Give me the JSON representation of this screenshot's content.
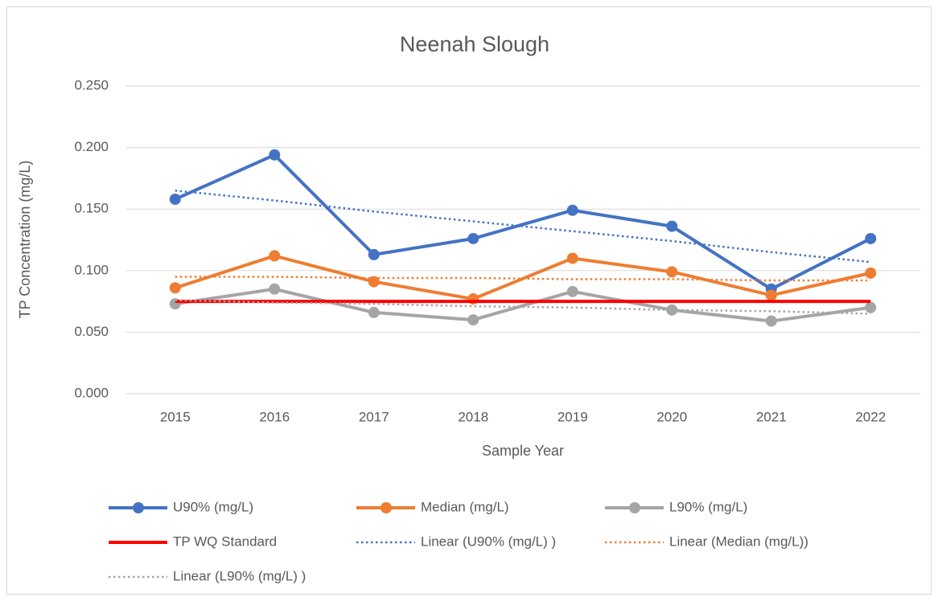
{
  "chart_data": {
    "type": "line",
    "title": "Neenah Slough",
    "x_label": "Sample Year",
    "y_label": "TP Concentration (mg/L)",
    "categories": [
      "2015",
      "2016",
      "2017",
      "2018",
      "2019",
      "2020",
      "2021",
      "2022"
    ],
    "ylim": [
      0,
      0.25
    ],
    "yticks": [
      {
        "value": 0,
        "label": "0.000"
      },
      {
        "value": 0.05,
        "label": "0.050"
      },
      {
        "value": 0.1,
        "label": "0.100"
      },
      {
        "value": 0.15,
        "label": "0.150"
      },
      {
        "value": 0.2,
        "label": "0.200"
      },
      {
        "value": 0.25,
        "label": "0.250"
      }
    ],
    "grid": true,
    "legend": "bottom",
    "series": [
      {
        "name": "U90% (mg/L)",
        "color": "#4472c4",
        "markers": true,
        "dashed": false,
        "width": 4,
        "values": [
          0.158,
          0.194,
          0.113,
          0.126,
          0.149,
          0.136,
          0.085,
          0.126
        ]
      },
      {
        "name": "Median (mg/L)",
        "color": "#ed7d31",
        "markers": true,
        "dashed": false,
        "width": 4,
        "values": [
          0.086,
          0.112,
          0.091,
          0.077,
          0.11,
          0.099,
          0.08,
          0.098
        ]
      },
      {
        "name": "L90% (mg/L)",
        "color": "#a5a5a5",
        "markers": true,
        "dashed": false,
        "width": 4,
        "values": [
          0.073,
          0.085,
          0.066,
          0.06,
          0.083,
          0.068,
          0.059,
          0.07
        ]
      },
      {
        "name": "TP WQ Standard",
        "color": "#ff0000",
        "markers": false,
        "dashed": false,
        "width": 4,
        "values": [
          0.075,
          0.075,
          0.075,
          0.075,
          0.075,
          0.075,
          0.075,
          0.075
        ]
      },
      {
        "name": "Linear (U90% (mg/L) )",
        "color": "#4472c4",
        "markers": false,
        "dashed": true,
        "width": 2.5,
        "values": [
          0.165,
          0.157,
          0.148,
          0.14,
          0.132,
          0.124,
          0.115,
          0.107
        ]
      },
      {
        "name": "Linear (Median (mg/L))",
        "color": "#ed7d31",
        "markers": false,
        "dashed": true,
        "width": 2.5,
        "values": [
          0.095,
          0.095,
          0.094,
          0.094,
          0.093,
          0.093,
          0.092,
          0.092
        ]
      },
      {
        "name": "Linear (L90% (mg/L) )",
        "color": "#a5a5a5",
        "markers": false,
        "dashed": true,
        "width": 2.5,
        "values": [
          0.076,
          0.074,
          0.073,
          0.071,
          0.07,
          0.068,
          0.067,
          0.065
        ]
      }
    ]
  }
}
